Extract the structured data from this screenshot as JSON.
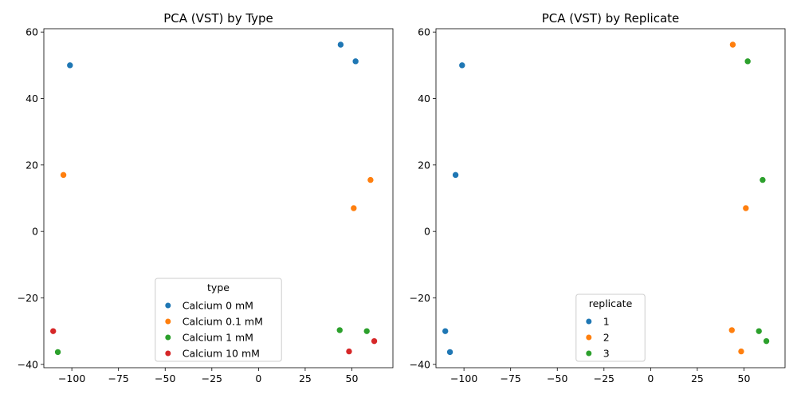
{
  "chart_data": [
    {
      "type": "scatter",
      "title": "PCA (VST) by Type",
      "xlabel": "",
      "ylabel": "",
      "xlim": [
        -115,
        72
      ],
      "ylim": [
        -41,
        61
      ],
      "xticks": [
        -100,
        -75,
        -50,
        -25,
        0,
        25,
        50
      ],
      "yticks": [
        -40,
        -20,
        0,
        20,
        40,
        60
      ],
      "grid": false,
      "legend": {
        "title": "type",
        "location": "lower center"
      },
      "series": [
        {
          "name": "Calcium 0 mM",
          "color": "#1f77b4",
          "points": [
            [
              -101,
              50
            ],
            [
              44,
              56.2
            ],
            [
              52,
              51.2
            ]
          ]
        },
        {
          "name": "Calcium 0.1 mM",
          "color": "#ff7f0e",
          "points": [
            [
              -104.5,
              17
            ],
            [
              60,
              15.5
            ],
            [
              51,
              7
            ]
          ]
        },
        {
          "name": "Calcium 1 mM",
          "color": "#2ca02c",
          "points": [
            [
              -107.5,
              -36.3
            ],
            [
              43.5,
              -29.7
            ],
            [
              58,
              -30
            ]
          ]
        },
        {
          "name": "Calcium 10 mM",
          "color": "#d62728",
          "points": [
            [
              -110,
              -30
            ],
            [
              48.5,
              -36.1
            ],
            [
              62,
              -33
            ]
          ]
        }
      ]
    },
    {
      "type": "scatter",
      "title": "PCA (VST) by Replicate",
      "xlabel": "",
      "ylabel": "",
      "xlim": [
        -115,
        72
      ],
      "ylim": [
        -41,
        61
      ],
      "xticks": [
        -100,
        -75,
        -50,
        -25,
        0,
        25,
        50
      ],
      "yticks": [
        -40,
        -20,
        0,
        20,
        40,
        60
      ],
      "grid": false,
      "legend": {
        "title": "replicate",
        "location": "lower center"
      },
      "series": [
        {
          "name": "1",
          "color": "#1f77b4",
          "points": [
            [
              -101,
              50
            ],
            [
              -104.5,
              17
            ],
            [
              -110,
              -30
            ],
            [
              -107.5,
              -36.3
            ]
          ]
        },
        {
          "name": "2",
          "color": "#ff7f0e",
          "points": [
            [
              44,
              56.2
            ],
            [
              51,
              7
            ],
            [
              43.5,
              -29.7
            ],
            [
              48.5,
              -36.1
            ]
          ]
        },
        {
          "name": "3",
          "color": "#2ca02c",
          "points": [
            [
              52,
              51.2
            ],
            [
              60,
              15.5
            ],
            [
              58,
              -30
            ],
            [
              62,
              -33
            ]
          ]
        }
      ]
    }
  ]
}
